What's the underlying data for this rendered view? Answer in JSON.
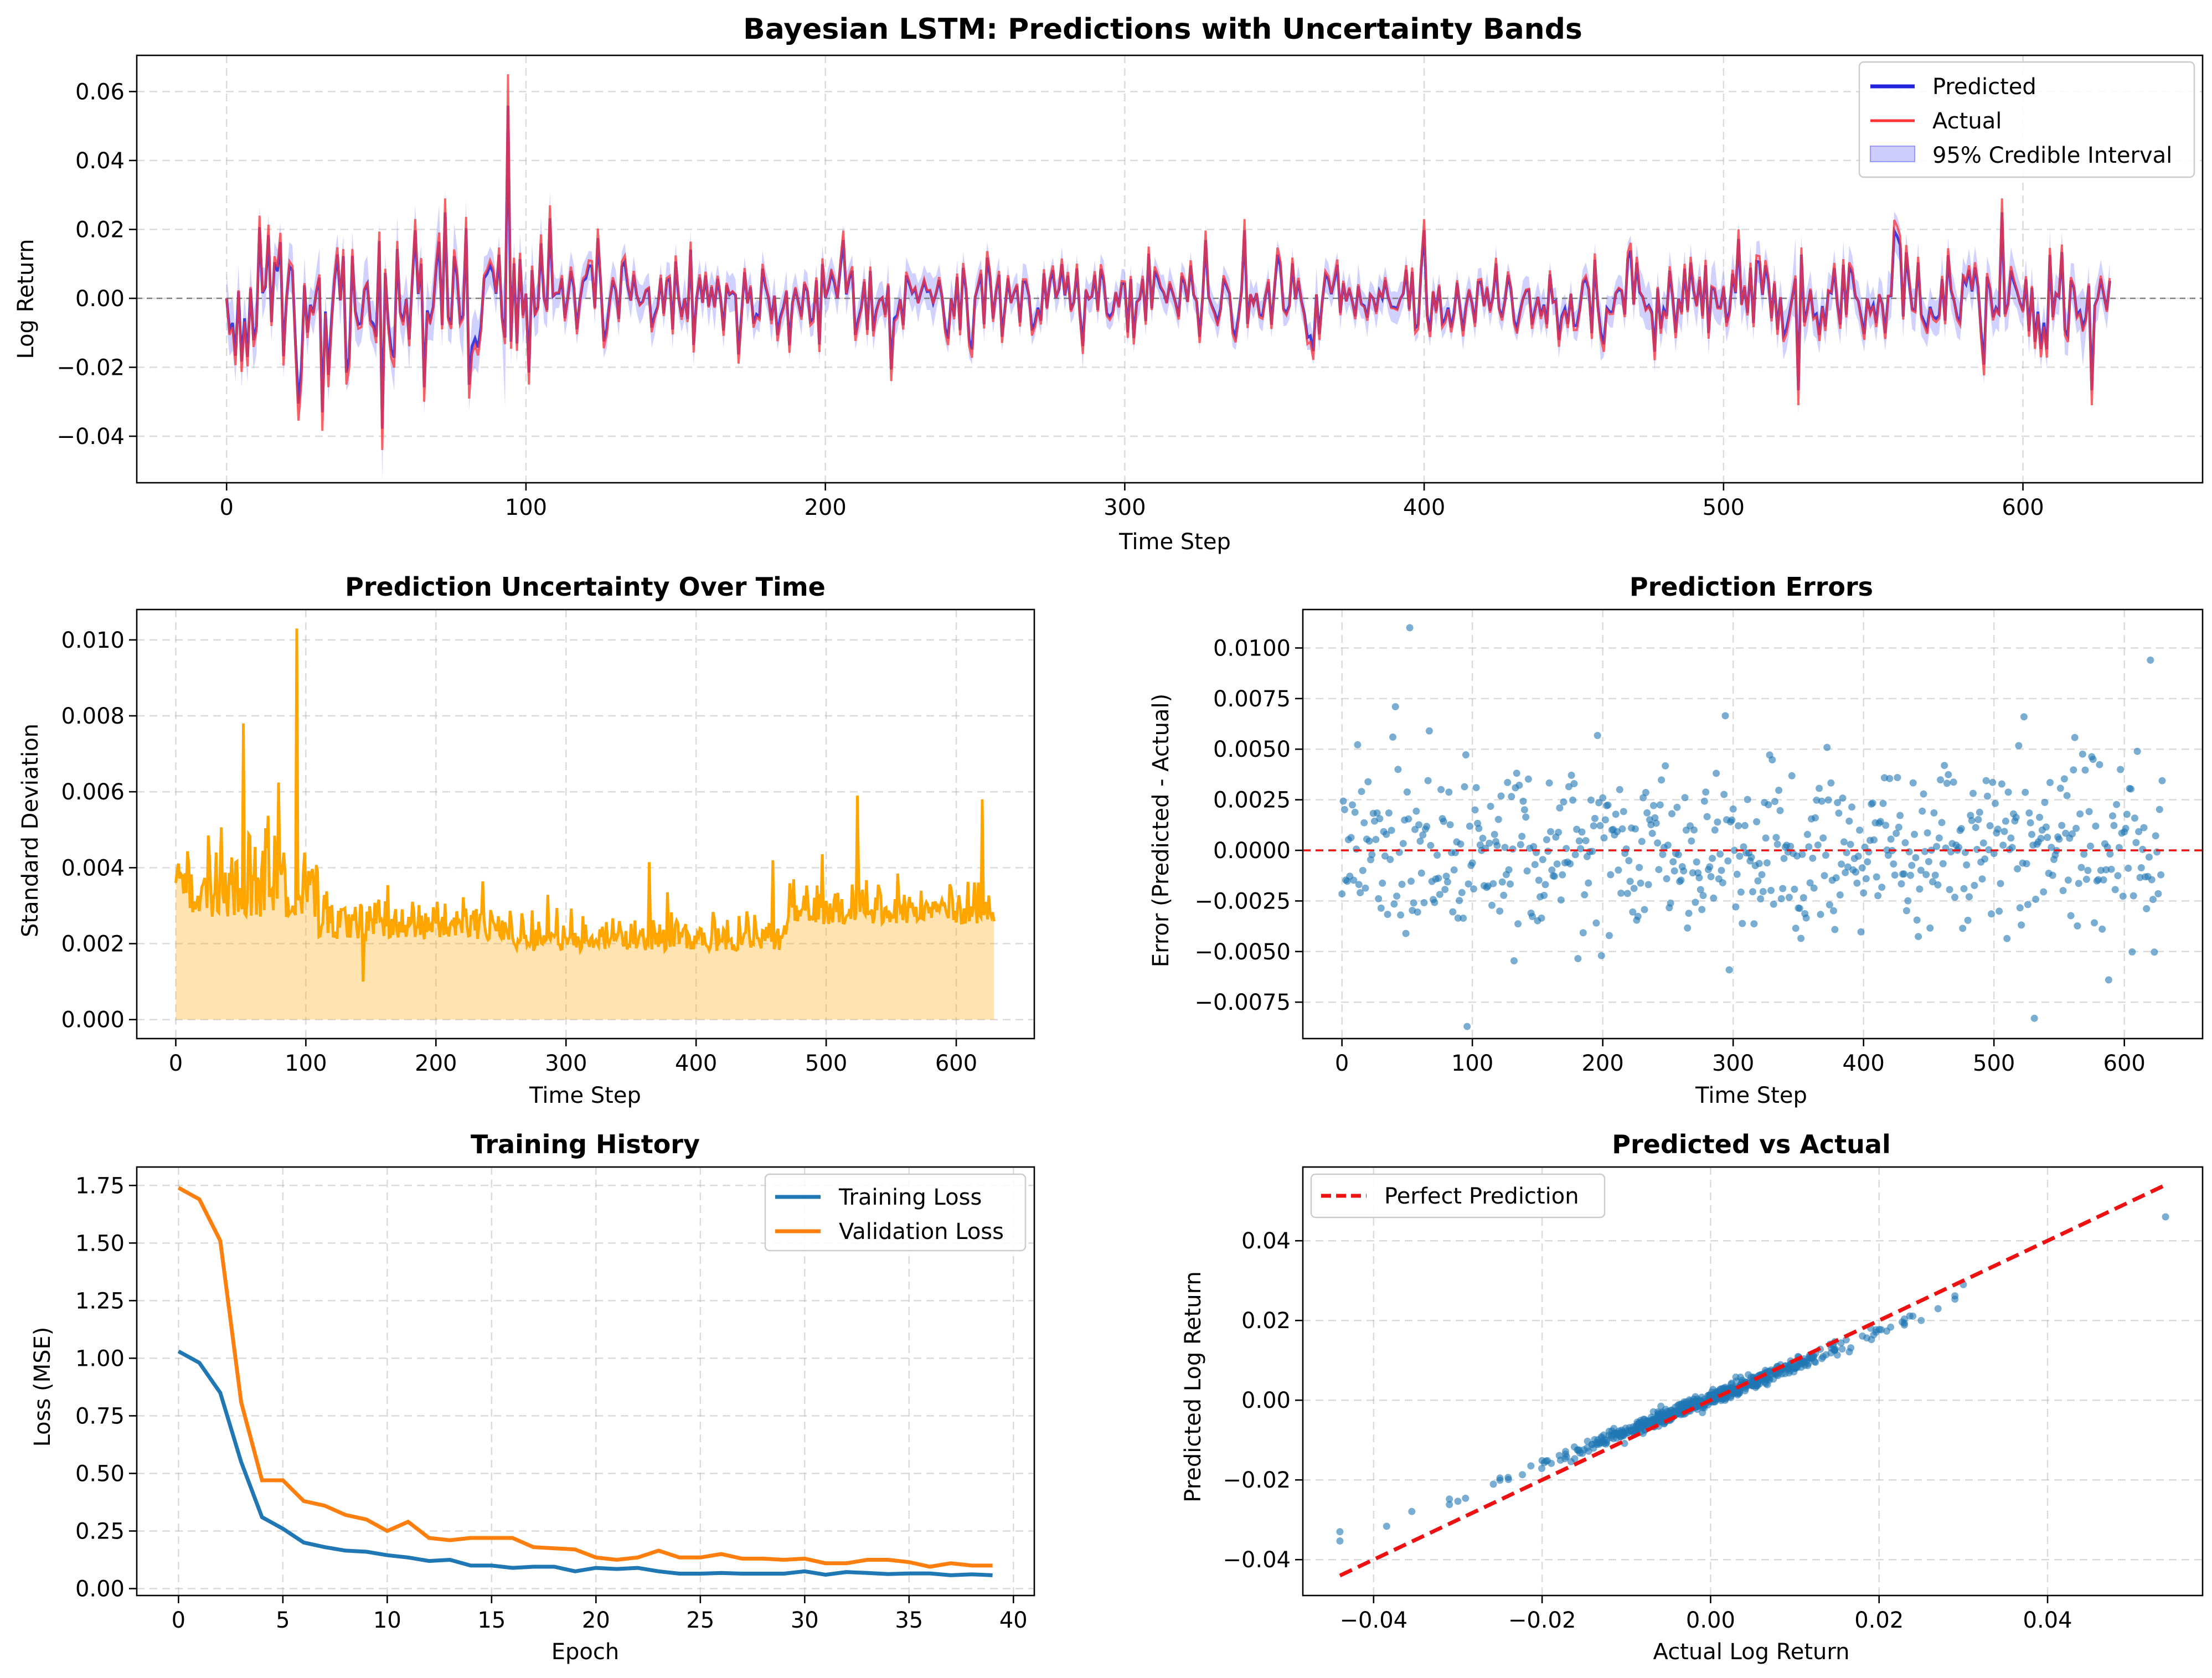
{
  "figure": {
    "suptitle": "Bayesian LSTM: Predictions with Uncertainty Bands"
  },
  "colors": {
    "predicted": "#2222dd",
    "actual": "#ff3333",
    "band": "#9999ff",
    "uncertainty": "#ffa500",
    "scatter": "#1f77b4",
    "train": "#1f77b4",
    "val": "#ff7f0e",
    "reference": "#ee1111",
    "zero_line": "#808080"
  },
  "chart_data": [
    {
      "type": "line",
      "title": "Bayesian LSTM: Predictions with Uncertainty Bands",
      "xlabel": "Time Step",
      "ylabel": "Log Return",
      "xlim": [
        -30,
        660
      ],
      "ylim": [
        -0.0535,
        0.0705
      ],
      "xticks": [
        "0",
        "100",
        "200",
        "300",
        "400",
        "500",
        "600"
      ],
      "yticks": [
        "−0.04",
        "−0.02",
        "0.00",
        "0.02",
        "0.04",
        "0.06"
      ],
      "n_points": 630,
      "grid": true,
      "legend": "top-right",
      "legend_entries": [
        "Predicted",
        "Actual",
        "95% Credible Interval"
      ],
      "reference_line_y": 0.0,
      "peaks": [
        [
          0,
          0.0
        ],
        [
          11,
          0.024
        ],
        [
          18,
          0.019
        ],
        [
          40,
          -0.025
        ],
        [
          41,
          -0.02
        ],
        [
          52,
          -0.044
        ],
        [
          63,
          0.023
        ],
        [
          66,
          -0.03
        ],
        [
          73,
          0.029
        ],
        [
          94,
          0.065
        ],
        [
          101,
          -0.025
        ],
        [
          108,
          0.027
        ],
        [
          222,
          -0.024
        ],
        [
          340,
          0.023
        ],
        [
          400,
          0.023
        ],
        [
          525,
          -0.031
        ],
        [
          593,
          0.029
        ],
        [
          623,
          -0.031
        ],
        [
          630,
          -0.009
        ]
      ]
    },
    {
      "type": "area",
      "title": "Prediction Uncertainty Over Time",
      "xlabel": "Time Step",
      "ylabel": "Standard Deviation",
      "xlim": [
        -30,
        660
      ],
      "ylim": [
        -0.0005,
        0.0108
      ],
      "xticks": [
        "0",
        "100",
        "200",
        "300",
        "400",
        "500",
        "600"
      ],
      "yticks": [
        "0.000",
        "0.002",
        "0.004",
        "0.006",
        "0.008",
        "0.010"
      ],
      "n_points": 630,
      "grid": true,
      "peaks": [
        [
          52,
          0.0078
        ],
        [
          93,
          0.0103
        ],
        [
          524,
          0.0059
        ],
        [
          620,
          0.0058
        ],
        [
          144,
          0.001
        ]
      ]
    },
    {
      "type": "scatter",
      "title": "Prediction Errors",
      "xlabel": "Time Step",
      "ylabel": "Error (Predicted - Actual)",
      "xlim": [
        -30,
        660
      ],
      "ylim": [
        -0.0093,
        0.0119
      ],
      "xticks": [
        "0",
        "100",
        "200",
        "300",
        "400",
        "500",
        "600"
      ],
      "yticks": [
        "−0.0075",
        "−0.0050",
        "−0.0025",
        "0.0000",
        "0.0025",
        "0.0050",
        "0.0075",
        "0.0100"
      ],
      "n_points": 630,
      "grid": true,
      "reference_line_y": 0.0,
      "outliers": [
        [
          52,
          0.011
        ],
        [
          41,
          0.0071
        ],
        [
          67,
          0.0059
        ],
        [
          96,
          -0.0087
        ],
        [
          523,
          0.0066
        ],
        [
          531,
          -0.0083
        ],
        [
          588,
          -0.0064
        ],
        [
          620,
          0.0094
        ]
      ]
    },
    {
      "type": "line",
      "title": "Training History",
      "xlabel": "Epoch",
      "ylabel": "Loss (MSE)",
      "xlim": [
        -2,
        41
      ],
      "ylim": [
        -0.03,
        1.83
      ],
      "xticks": [
        "0",
        "5",
        "10",
        "15",
        "20",
        "25",
        "30",
        "35",
        "40"
      ],
      "yticks": [
        "0.00",
        "0.25",
        "0.50",
        "0.75",
        "1.00",
        "1.25",
        "1.50",
        "1.75"
      ],
      "grid": true,
      "legend": "top-right",
      "x": [
        0,
        1,
        2,
        3,
        4,
        5,
        6,
        7,
        8,
        9,
        10,
        11,
        12,
        13,
        14,
        15,
        16,
        17,
        18,
        19,
        20,
        21,
        22,
        23,
        24,
        25,
        26,
        27,
        28,
        29,
        30,
        31,
        32,
        33,
        34,
        35,
        36,
        37,
        38,
        39
      ],
      "series": [
        {
          "name": "Training Loss",
          "values": [
            1.03,
            0.98,
            0.85,
            0.55,
            0.31,
            0.26,
            0.2,
            0.18,
            0.165,
            0.16,
            0.145,
            0.135,
            0.12,
            0.125,
            0.1,
            0.1,
            0.09,
            0.095,
            0.095,
            0.075,
            0.09,
            0.085,
            0.09,
            0.075,
            0.065,
            0.065,
            0.068,
            0.065,
            0.065,
            0.065,
            0.075,
            0.06,
            0.072,
            0.068,
            0.063,
            0.066,
            0.066,
            0.058,
            0.062,
            0.058
          ]
        },
        {
          "name": "Validation Loss",
          "values": [
            1.74,
            1.69,
            1.51,
            0.81,
            0.47,
            0.47,
            0.38,
            0.36,
            0.32,
            0.3,
            0.25,
            0.29,
            0.22,
            0.21,
            0.22,
            0.22,
            0.22,
            0.18,
            0.175,
            0.17,
            0.135,
            0.125,
            0.135,
            0.165,
            0.135,
            0.135,
            0.15,
            0.13,
            0.13,
            0.125,
            0.13,
            0.11,
            0.11,
            0.125,
            0.125,
            0.115,
            0.095,
            0.11,
            0.1,
            0.1
          ]
        }
      ]
    },
    {
      "type": "scatter",
      "title": "Predicted vs Actual",
      "xlabel": "Actual Log Return",
      "ylabel": "Predicted Log Return",
      "xlim": [
        -0.0484,
        0.0584
      ],
      "ylim": [
        -0.049,
        0.0585
      ],
      "xticks": [
        "−0.04",
        "−0.02",
        "0.00",
        "0.02",
        "0.04"
      ],
      "yticks": [
        "−0.04",
        "−0.02",
        "0.00",
        "0.02",
        "0.04"
      ],
      "grid": true,
      "legend": "top-left",
      "legend_entries": [
        "Perfect Prediction"
      ],
      "reference_line": [
        [
          -0.044,
          -0.044
        ],
        [
          0.054,
          0.054
        ]
      ],
      "fit_slope": 0.84,
      "extremes": [
        [
          -0.044,
          -0.033
        ],
        [
          0.054,
          0.046
        ],
        [
          0.03,
          0.029
        ],
        [
          0.025,
          0.02
        ]
      ]
    }
  ]
}
